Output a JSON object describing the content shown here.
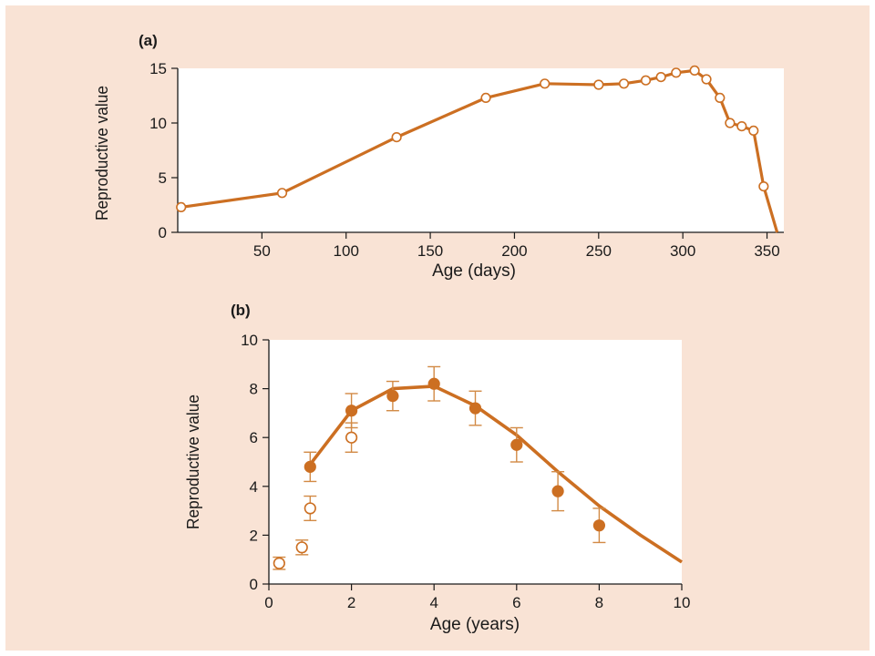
{
  "colors": {
    "background": "#f9e3d5",
    "plot_area": "#ffffff",
    "line": "#cc6f22",
    "errorbar": "#d28a45"
  },
  "chart_data": [
    {
      "panel_label": "(a)",
      "type": "line",
      "xlabel": "Age (days)",
      "ylabel": "Reproductive value",
      "xlim": [
        0,
        360
      ],
      "ylim": [
        0,
        15
      ],
      "xticks": [
        50,
        100,
        150,
        200,
        250,
        300,
        350
      ],
      "yticks": [
        0,
        5,
        10,
        15
      ],
      "grid": false,
      "series": [
        {
          "marker": "open-circle",
          "x": [
            2,
            62,
            130,
            183,
            218,
            250,
            265,
            278,
            287,
            296,
            307,
            314,
            322,
            328,
            335,
            342,
            348,
            356
          ],
          "y": [
            2.3,
            3.6,
            8.7,
            12.3,
            13.6,
            13.5,
            13.6,
            13.9,
            14.2,
            14.6,
            14.8,
            14.0,
            12.3,
            10.0,
            9.7,
            9.3,
            4.2,
            0.0
          ],
          "marker_mask": [
            1,
            1,
            1,
            1,
            1,
            1,
            1,
            1,
            1,
            1,
            1,
            1,
            1,
            1,
            1,
            1,
            1,
            0
          ]
        }
      ]
    },
    {
      "panel_label": "(b)",
      "type": "line",
      "xlabel": "Age (years)",
      "ylabel": "Reproductive value",
      "xlim": [
        0,
        10
      ],
      "ylim": [
        0,
        10
      ],
      "xticks": [
        0,
        2,
        4,
        6,
        8,
        10
      ],
      "yticks": [
        0,
        2,
        4,
        6,
        8,
        10
      ],
      "grid": false,
      "series": [
        {
          "style": "line",
          "x": [
            1,
            2,
            3,
            4,
            5,
            6,
            7,
            8,
            9,
            10
          ],
          "y": [
            4.9,
            7.1,
            8.0,
            8.1,
            7.3,
            6.1,
            4.6,
            3.2,
            2.0,
            0.9
          ]
        },
        {
          "style": "filled-points",
          "x": [
            1,
            2,
            3,
            4,
            5,
            6,
            7,
            8
          ],
          "y": [
            4.8,
            7.1,
            7.7,
            8.2,
            7.2,
            5.7,
            3.8,
            2.4
          ],
          "err": [
            0.6,
            0.7,
            0.6,
            0.7,
            0.7,
            0.7,
            0.8,
            0.7
          ]
        },
        {
          "style": "open-points",
          "x": [
            0.25,
            0.8,
            1.0,
            2.0
          ],
          "y": [
            0.85,
            1.5,
            3.1,
            6.0
          ],
          "err": [
            0.25,
            0.3,
            0.5,
            0.6
          ]
        }
      ]
    }
  ]
}
